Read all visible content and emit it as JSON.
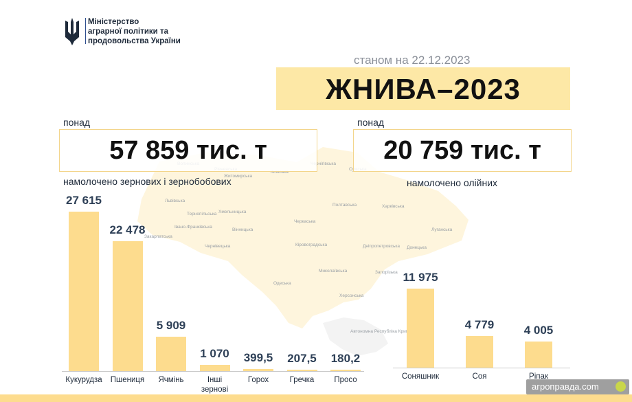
{
  "header": {
    "ministry_lines": [
      "Міністерство",
      "аграрної політики та",
      "продовольства України"
    ],
    "logo_icon": "trident-icon"
  },
  "date_label": "станом на 22.12.2023",
  "title": "ЖНИВА–2023",
  "grains": {
    "over_label": "понад",
    "total": "57 859 тис. т",
    "caption": "намолочено зернових і зернобобових"
  },
  "oilseeds": {
    "over_label": "понад",
    "total": "20 759 тис. т",
    "caption": "намолочено олійних"
  },
  "colors": {
    "bar": "#fddc8e",
    "title_bg": "#fde8a6",
    "value_text": "#2e4057"
  },
  "map_labels": [
    "Волинська",
    "Рівненська",
    "Житомирська",
    "Київська",
    "Чернігівська",
    "Сумська",
    "Львівська",
    "Тернопільська",
    "Хмельницька",
    "Полтавська",
    "Харківська",
    "Луганська",
    "Івано-Франківська",
    "Закарпатська",
    "Вінницька",
    "Черкаська",
    "Чернівецька",
    "Кіровоградська",
    "Дніпропетровська",
    "Донецька",
    "Запорізька",
    "Одеська",
    "Миколаївська",
    "Херсонська",
    "Автономна Республіка Крим"
  ],
  "watermark": {
    "text": "агроправда.com"
  },
  "chart_data": [
    {
      "type": "bar",
      "categories": [
        "Кукурудза",
        "Пшениця",
        "Ячмінь",
        "Інші зернові",
        "Горох",
        "Гречка",
        "Просо"
      ],
      "values": [
        27615,
        22478,
        5909,
        1070,
        399.5,
        207.5,
        180.2
      ],
      "value_labels": [
        "27 615",
        "22 478",
        "5 909",
        "1 070",
        "399,5",
        "207,5",
        "180,2"
      ],
      "title": "намолочено зернових і зернобобових",
      "ylim": [
        0,
        27615
      ]
    },
    {
      "type": "bar",
      "categories": [
        "Соняшник",
        "Соя",
        "Ріпак"
      ],
      "values": [
        11975,
        4779,
        4005
      ],
      "value_labels": [
        "11 975",
        "4 779",
        "4 005"
      ],
      "title": "намолочено олійних",
      "ylim": [
        0,
        11975
      ]
    }
  ]
}
